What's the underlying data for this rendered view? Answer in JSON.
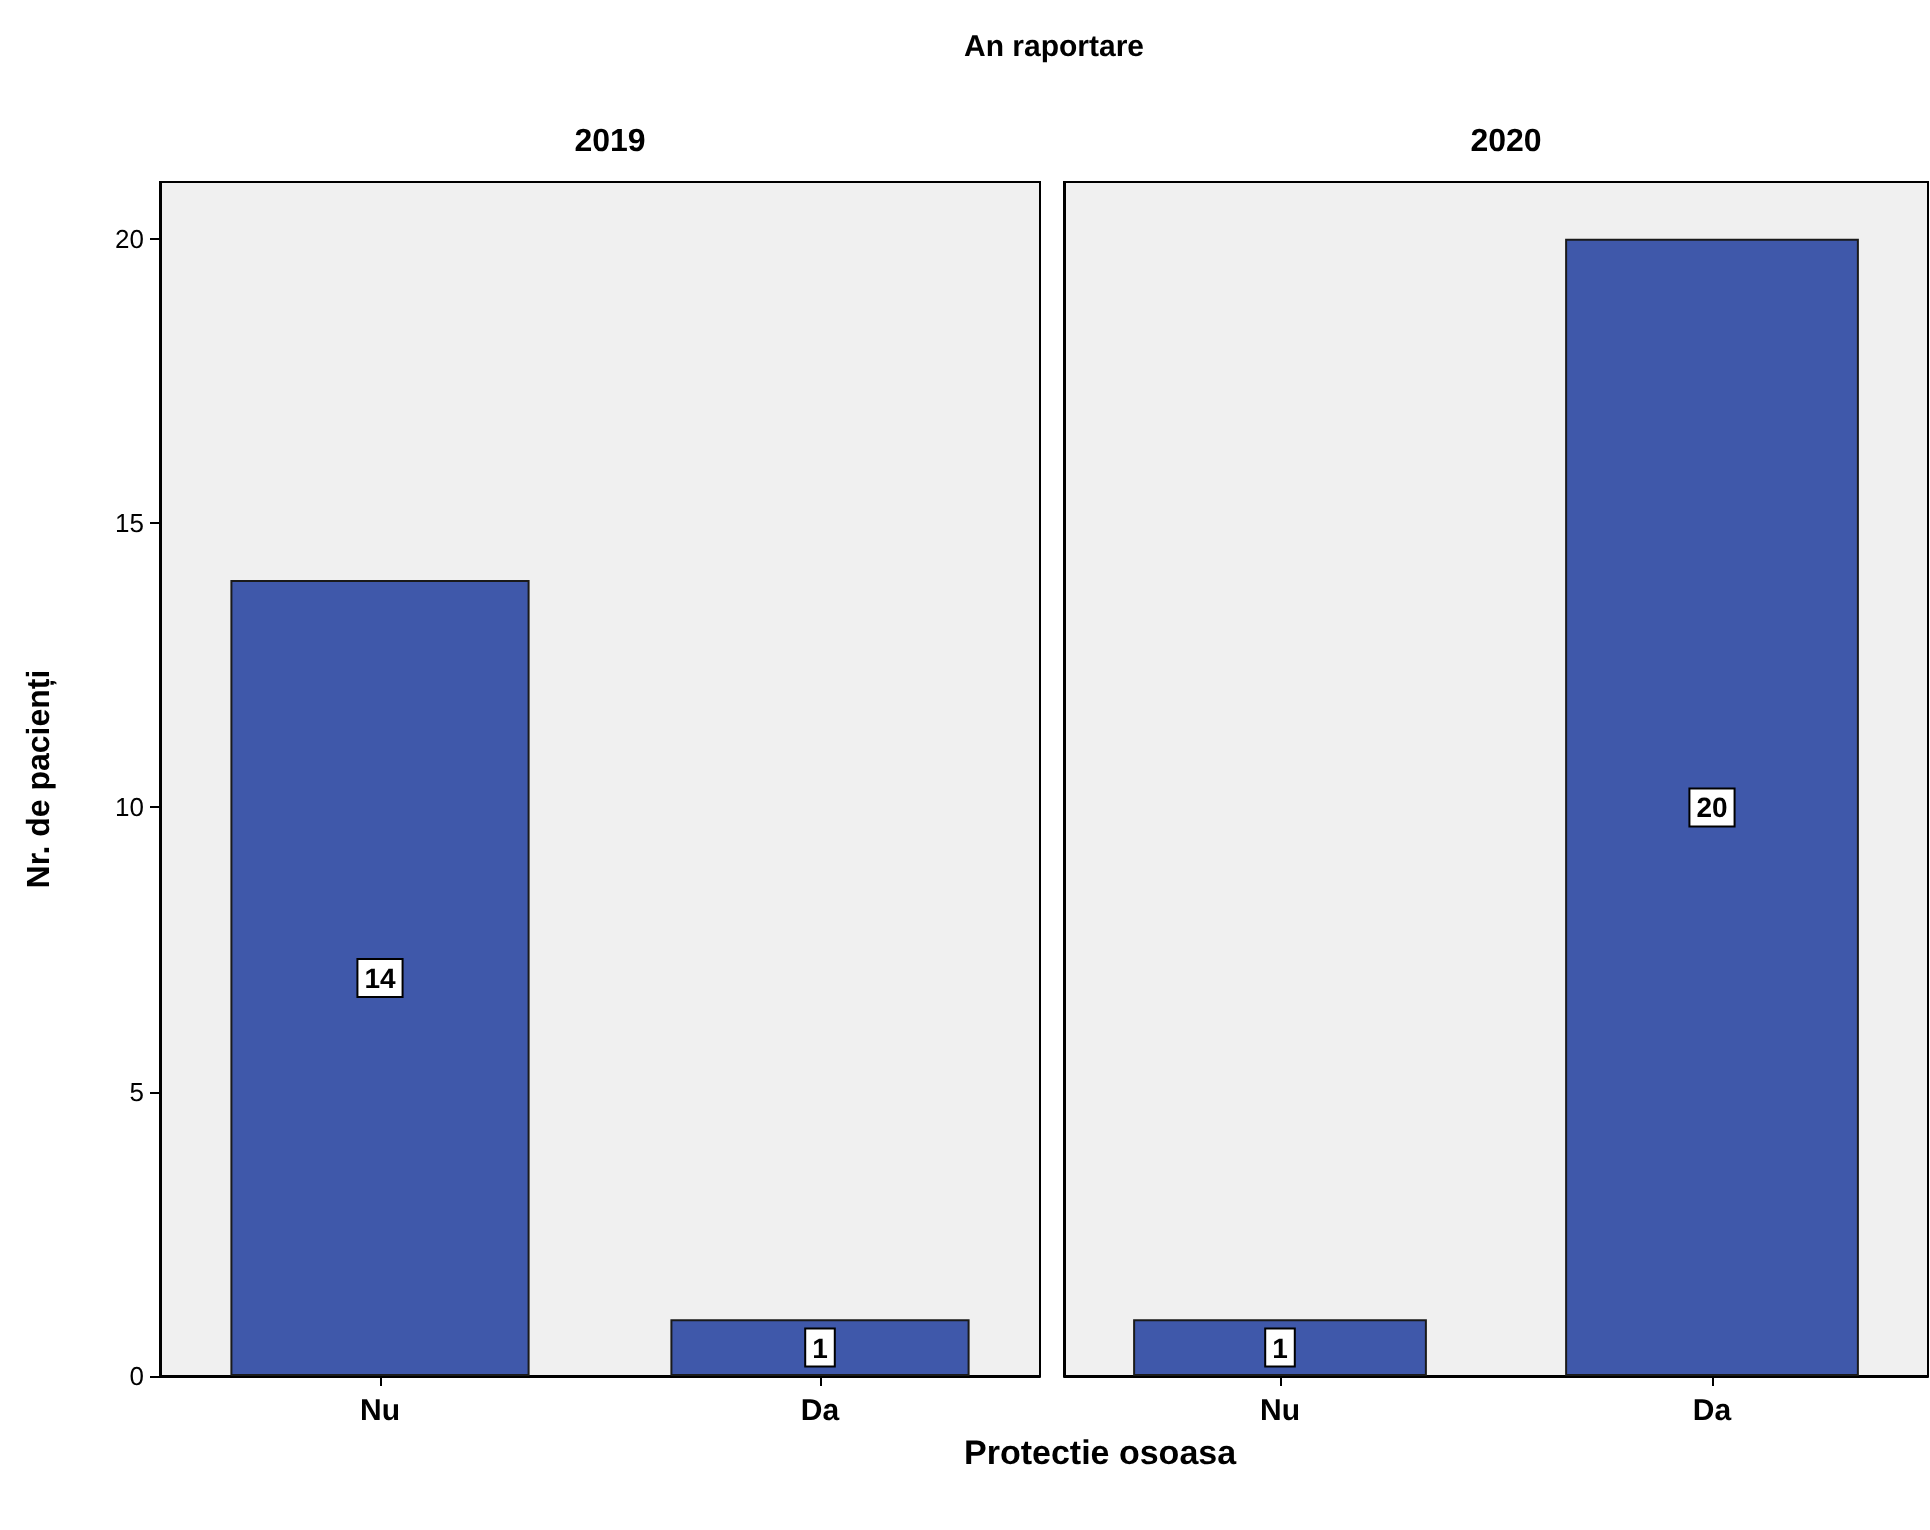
{
  "chart_data": [
    {
      "type": "bar",
      "title": "2019",
      "annotations": [
        "An raportare"
      ],
      "xlabel": "Protectie osoasa",
      "ylabel": "Nr. de pacienți",
      "categories": [
        "Nu",
        "Da"
      ],
      "values": [
        14,
        1
      ],
      "color": "#3f58aa",
      "ylim": [
        0,
        21
      ],
      "yticks": [
        0,
        5,
        10,
        15,
        20
      ],
      "data_labels": true
    },
    {
      "type": "bar",
      "title": "2020",
      "categories": [
        "Nu",
        "Da"
      ],
      "values": [
        1,
        20
      ],
      "color": "#3f58aa",
      "ylim": [
        0,
        21
      ],
      "yticks": [
        0,
        5,
        10,
        15,
        20
      ],
      "data_labels": true,
      "tick_labels": "x"
    }
  ]
}
